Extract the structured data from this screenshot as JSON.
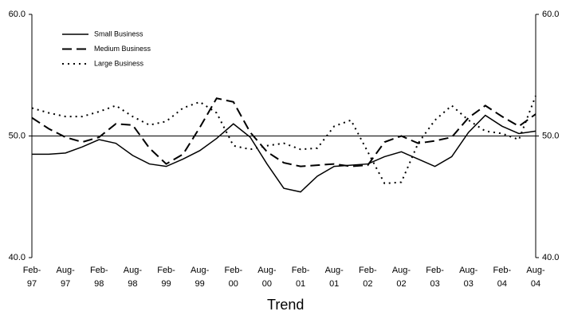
{
  "chart_data": {
    "type": "line",
    "title": "Trend",
    "categories": [
      "Feb-97",
      null,
      "Aug-97",
      null,
      "Feb-98",
      null,
      "Aug-98",
      null,
      "Feb-99",
      null,
      "Aug-99",
      null,
      "Feb-00",
      null,
      "Aug-00",
      null,
      "Feb-01",
      null,
      "Aug-01",
      null,
      "Feb-02",
      null,
      "Aug-02",
      null,
      "Feb-03",
      null,
      "Aug-03",
      null,
      "Feb-04",
      null,
      "Aug-04"
    ],
    "series": [
      {
        "name": "Small Business",
        "color": "#000000",
        "dash": "solid",
        "values": [
          48.5,
          48.5,
          48.6,
          49.1,
          49.7,
          49.4,
          48.4,
          47.7,
          47.5,
          48.1,
          48.8,
          49.8,
          51.0,
          49.9,
          47.7,
          45.7,
          45.4,
          46.7,
          47.5,
          47.6,
          47.7,
          48.3,
          48.7,
          48.1,
          47.5,
          48.3,
          50.3,
          51.7,
          50.8,
          50.2,
          50.4
        ]
      },
      {
        "name": "Medium Business",
        "color": "#000000",
        "dash": "dashed",
        "values": [
          51.5,
          50.6,
          49.9,
          49.5,
          49.9,
          51.0,
          50.9,
          49.0,
          47.7,
          48.5,
          50.7,
          53.1,
          52.8,
          50.3,
          48.7,
          47.8,
          47.5,
          47.6,
          47.7,
          47.5,
          47.6,
          49.5,
          50.0,
          49.4,
          49.6,
          49.9,
          51.5,
          52.5,
          51.6,
          50.8,
          51.8
        ]
      },
      {
        "name": "Large Business",
        "color": "#000000",
        "dash": "dotted",
        "values": [
          52.3,
          51.9,
          51.6,
          51.6,
          52.0,
          52.5,
          51.6,
          50.9,
          51.2,
          52.3,
          52.8,
          51.9,
          49.2,
          48.9,
          49.2,
          49.4,
          48.9,
          49.0,
          50.8,
          51.3,
          48.7,
          46.1,
          46.2,
          49.4,
          51.3,
          52.5,
          51.3,
          50.4,
          50.2,
          49.7,
          53.3
        ]
      }
    ],
    "ylim": [
      40,
      60
    ],
    "yticks": [
      {
        "value": 40,
        "label": "40.0"
      },
      {
        "value": 50,
        "label": "50.0"
      },
      {
        "value": 60,
        "label": "60.0"
      }
    ],
    "y2lim": [
      40,
      60
    ],
    "y2ticks": [
      {
        "value": 40,
        "label": "40.0"
      },
      {
        "value": 50,
        "label": "50.0"
      },
      {
        "value": 60,
        "label": "60.0"
      }
    ],
    "reference_line": 50,
    "legend": "upper left",
    "grid": false
  }
}
